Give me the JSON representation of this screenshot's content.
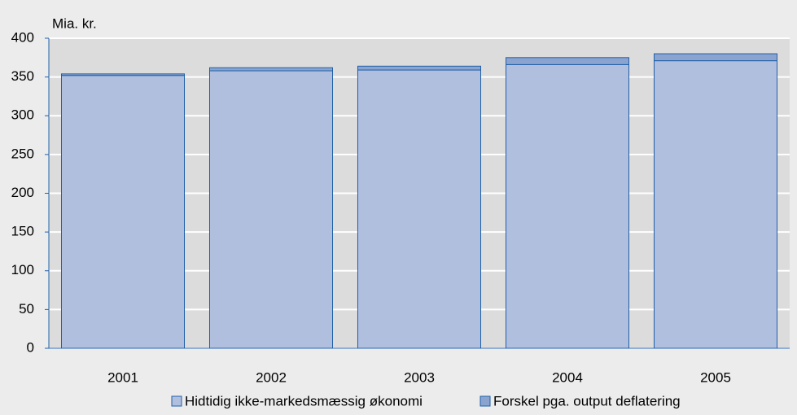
{
  "chart_data": {
    "type": "stacked_bar",
    "y_unit_label": "Mia. kr.",
    "categories": [
      "2001",
      "2002",
      "2003",
      "2004",
      "2005"
    ],
    "series": [
      {
        "name": "Hidtidig ikke-markedsmæssig økonomi",
        "color": "#b1bfdf",
        "values": [
          352,
          358,
          359,
          366,
          371
        ]
      },
      {
        "name": "Forskel pga. output deflatering",
        "color": "#8ba4cf",
        "values": [
          2,
          4,
          5,
          9,
          9
        ]
      }
    ],
    "ylim": [
      0,
      400
    ],
    "yticks": [
      0,
      50,
      100,
      150,
      200,
      250,
      300,
      350,
      400
    ],
    "grid": true,
    "legend": "bottom"
  }
}
